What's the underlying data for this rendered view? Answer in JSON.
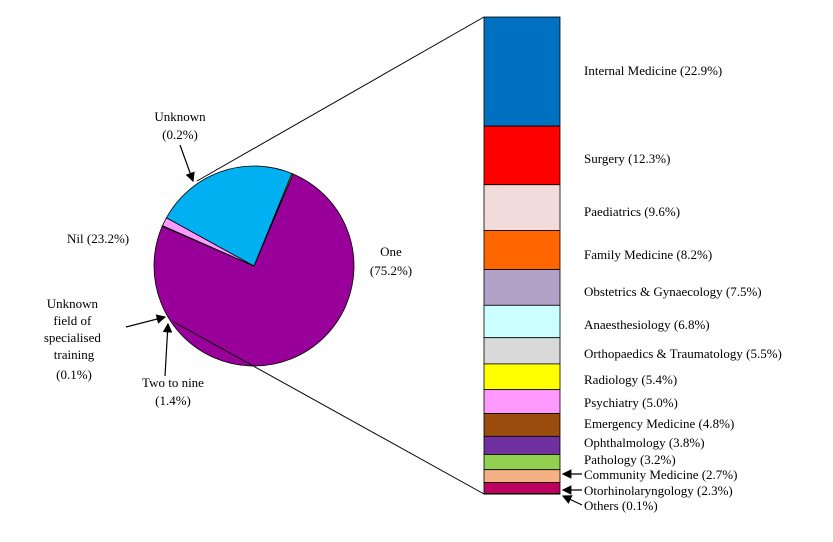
{
  "chart_data": {
    "type": "bar-of-pie",
    "pie": {
      "slices": [
        {
          "label": "One",
          "pct_label": "(75.2%)",
          "value": 75.2,
          "color": "#990099"
        },
        {
          "label": "Unknown field of specialised training",
          "pct_label": "(0.1%)",
          "value": 0.1,
          "color": "#8b4513"
        },
        {
          "label": "Two to nine",
          "pct_label": "(1.4%)",
          "value": 1.4,
          "color": "#ff99ff"
        },
        {
          "label": "Nil (23.2%)",
          "pct_label": "",
          "value": 23.2,
          "color": "#00b0f0"
        },
        {
          "label": "Unknown",
          "pct_label": "(0.2%)",
          "value": 0.2,
          "color": "#e6e600"
        }
      ]
    },
    "stacked_bar": {
      "segments": [
        {
          "label": "Internal Medicine (22.9%)",
          "value": 22.9,
          "color": "#0070c0"
        },
        {
          "label": "Surgery (12.3%)",
          "value": 12.3,
          "color": "#ff0000"
        },
        {
          "label": "Paediatrics (9.6%)",
          "value": 9.6,
          "color": "#f2dcdb"
        },
        {
          "label": "Family Medicine (8.2%)",
          "value": 8.2,
          "color": "#ff6600"
        },
        {
          "label": "Obstetrics & Gynaecology (7.5%)",
          "value": 7.5,
          "color": "#b3a2c7"
        },
        {
          "label": "Anaesthesiology (6.8%)",
          "value": 6.8,
          "color": "#ccffff"
        },
        {
          "label": "Orthopaedics & Traumatology (5.5%)",
          "value": 5.5,
          "color": "#d9d9d9"
        },
        {
          "label": "Radiology (5.4%)",
          "value": 5.4,
          "color": "#ffff00"
        },
        {
          "label": "Psychiatry (5.0%)",
          "value": 5.0,
          "color": "#ff99ff"
        },
        {
          "label": "Emergency Medicine (4.8%)",
          "value": 4.8,
          "color": "#994c0d"
        },
        {
          "label": "Ophthalmology (3.8%)",
          "value": 3.8,
          "color": "#7030a0"
        },
        {
          "label": "Pathology (3.2%)",
          "value": 3.2,
          "color": "#92d050"
        },
        {
          "label": "Community Medicine (2.7%)",
          "value": 2.7,
          "color": "#f4b183"
        },
        {
          "label": "Otorhinolaryngology (2.3%)",
          "value": 2.3,
          "color": "#c00060"
        },
        {
          "label": "Others (0.1%)",
          "value": 0.1,
          "color": "#333333"
        }
      ]
    }
  }
}
